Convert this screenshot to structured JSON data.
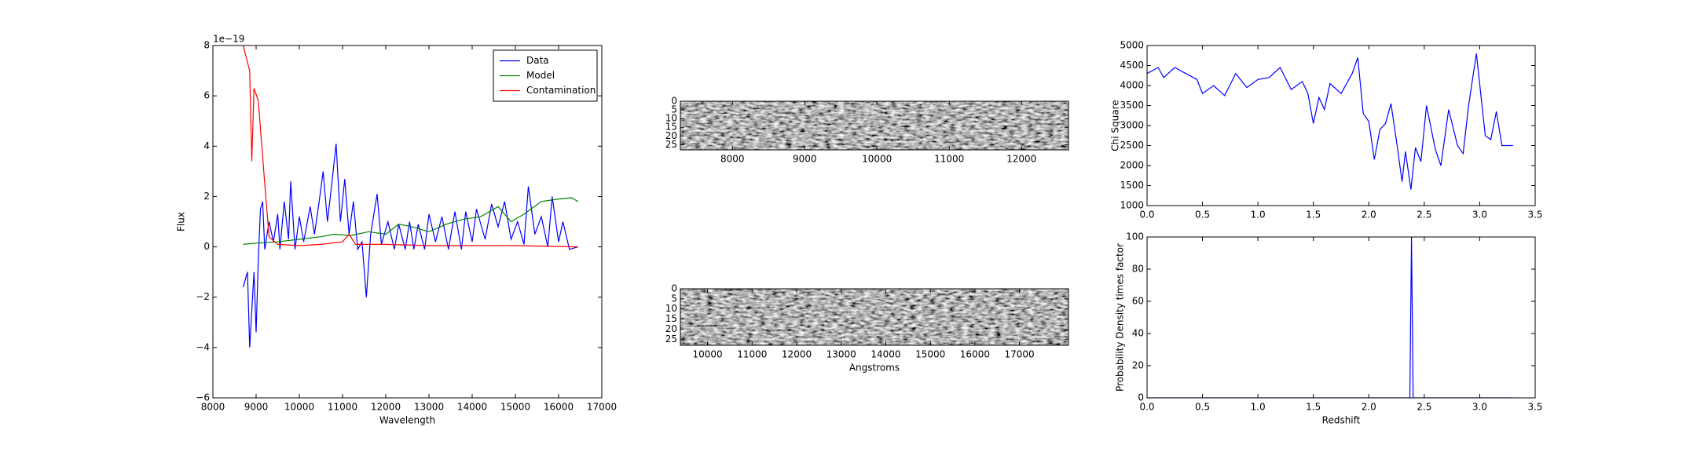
{
  "chart_data": [
    {
      "type": "line",
      "xlabel": "Wavelength",
      "ylabel": "Flux",
      "offset_text": "1e−19",
      "xlim": [
        8000,
        17000
      ],
      "ylim": [
        -6,
        8
      ],
      "xticks": [
        8000,
        9000,
        10000,
        11000,
        12000,
        13000,
        14000,
        15000,
        16000,
        17000
      ],
      "yticks": [
        {
          "value": -6,
          "label": "−6"
        },
        {
          "value": -4,
          "label": "−4"
        },
        {
          "value": -2,
          "label": "−2"
        },
        0,
        2,
        4,
        6,
        8
      ],
      "legend": "upper right",
      "series": [
        {
          "name": "Data",
          "color": "#0000ff",
          "x": [
            8700,
            8800,
            8850,
            8950,
            9000,
            9050,
            9100,
            9150,
            9200,
            9300,
            9400,
            9500,
            9550,
            9650,
            9750,
            9800,
            9900,
            10000,
            10100,
            10250,
            10350,
            10450,
            10550,
            10650,
            10750,
            10850,
            10950,
            11050,
            11150,
            11250,
            11350,
            11450,
            11550,
            11650,
            11800,
            11900,
            12050,
            12200,
            12300,
            12450,
            12550,
            12650,
            12750,
            12900,
            13000,
            13150,
            13300,
            13450,
            13600,
            13750,
            13850,
            14000,
            14100,
            14300,
            14450,
            14600,
            14750,
            14900,
            15050,
            15200,
            15300,
            15450,
            15600,
            15750,
            15850,
            16000,
            16100,
            16250,
            16450
          ],
          "values": [
            -1.6,
            -1.0,
            -4.0,
            -1.0,
            -3.4,
            -0.5,
            1.5,
            1.8,
            -0.1,
            1.0,
            0.2,
            1.3,
            -0.1,
            1.8,
            0.3,
            2.6,
            -0.1,
            1.2,
            0.2,
            1.6,
            0.5,
            1.7,
            3.0,
            1.0,
            2.5,
            4.1,
            1.0,
            2.7,
            0.5,
            1.8,
            -0.1,
            0.2,
            -2.0,
            0.5,
            2.1,
            0.1,
            1.0,
            -0.1,
            0.9,
            -0.1,
            1.0,
            -0.1,
            0.9,
            -0.1,
            1.3,
            0.2,
            1.2,
            -0.1,
            1.4,
            -0.1,
            1.4,
            0.2,
            1.5,
            0.3,
            1.7,
            0.8,
            1.8,
            0.3,
            1.0,
            0.1,
            2.4,
            0.5,
            1.2,
            0.0,
            2.0,
            0.2,
            1.0,
            -0.1,
            0.0
          ]
        },
        {
          "name": "Model",
          "color": "#008000",
          "x": [
            8700,
            9000,
            9500,
            10000,
            10500,
            10800,
            11200,
            11600,
            12000,
            12300,
            12600,
            13000,
            13400,
            13800,
            14200,
            14600,
            14900,
            15200,
            15600,
            16000,
            16300,
            16450
          ],
          "values": [
            0.1,
            0.15,
            0.2,
            0.3,
            0.4,
            0.5,
            0.45,
            0.6,
            0.5,
            0.9,
            0.8,
            0.6,
            0.9,
            1.1,
            1.2,
            1.6,
            1.0,
            1.3,
            1.8,
            1.9,
            1.95,
            1.8
          ]
        },
        {
          "name": "Contamination",
          "color": "#ff0000",
          "x": [
            8700,
            8850,
            8900,
            8950,
            9050,
            9200,
            9300,
            9500,
            10000,
            10500,
            11000,
            11150,
            11300,
            12000,
            13000,
            14000,
            15000,
            16450
          ],
          "values": [
            8.0,
            7.0,
            3.4,
            6.3,
            5.8,
            2.5,
            0.4,
            0.1,
            0.05,
            0.1,
            0.2,
            0.5,
            0.1,
            0.1,
            0.05,
            0.05,
            0.05,
            0.0
          ]
        }
      ]
    },
    {
      "type": "image",
      "xlim": [
        7280,
        12650
      ],
      "ylim": [
        28,
        0
      ],
      "xticks": [
        8000,
        9000,
        10000,
        11000,
        12000
      ],
      "yticks": [
        0,
        5,
        10,
        15,
        20,
        25
      ]
    },
    {
      "type": "image",
      "xlabel": "Angstroms",
      "xlim": [
        9390,
        18100
      ],
      "ylim": [
        28,
        0
      ],
      "xticks": [
        10000,
        11000,
        12000,
        13000,
        14000,
        15000,
        16000,
        17000
      ],
      "yticks": [
        0,
        5,
        10,
        15,
        20,
        25
      ]
    },
    {
      "type": "line",
      "ylabel": "Chi Square",
      "xlim": [
        0,
        3.5
      ],
      "ylim": [
        1000,
        5000
      ],
      "xticks": [
        {
          "value": 0,
          "label": "0.0"
        },
        0.5,
        {
          "value": 1,
          "label": "1.0"
        },
        1.5,
        {
          "value": 2,
          "label": "2.0"
        },
        2.5,
        {
          "value": 3,
          "label": "3.0"
        },
        3.5
      ],
      "yticks": [
        1000,
        1500,
        2000,
        2500,
        3000,
        3500,
        4000,
        4500,
        5000
      ],
      "series": [
        {
          "color": "#0000ff",
          "x": [
            0,
            0.1,
            0.15,
            0.25,
            0.35,
            0.45,
            0.5,
            0.6,
            0.7,
            0.8,
            0.9,
            1.0,
            1.1,
            1.2,
            1.3,
            1.4,
            1.45,
            1.5,
            1.55,
            1.6,
            1.65,
            1.75,
            1.85,
            1.9,
            1.95,
            2.0,
            2.05,
            2.1,
            2.15,
            2.2,
            2.25,
            2.3,
            2.33,
            2.38,
            2.42,
            2.47,
            2.52,
            2.6,
            2.65,
            2.72,
            2.8,
            2.85,
            2.9,
            2.97,
            3.05,
            3.1,
            3.15,
            3.2,
            3.3
          ],
          "values": [
            4300,
            4450,
            4200,
            4450,
            4300,
            4150,
            3800,
            4000,
            3750,
            4300,
            3950,
            4150,
            4200,
            4450,
            3900,
            4100,
            3800,
            3050,
            3700,
            3400,
            4050,
            3800,
            4300,
            4700,
            3300,
            3100,
            2150,
            2900,
            3050,
            3550,
            2600,
            1600,
            2350,
            1400,
            2450,
            2100,
            3500,
            2400,
            2000,
            3400,
            2500,
            2300,
            3500,
            4800,
            2750,
            2650,
            3350,
            2500,
            2500
          ]
        }
      ]
    },
    {
      "type": "line",
      "xlabel": "Redshift",
      "ylabel": "Probability Density times factor",
      "xlim": [
        0,
        3.5
      ],
      "ylim": [
        0,
        100
      ],
      "xticks": [
        {
          "value": 0,
          "label": "0.0"
        },
        0.5,
        {
          "value": 1,
          "label": "1.0"
        },
        1.5,
        {
          "value": 2,
          "label": "2.0"
        },
        2.5,
        {
          "value": 3,
          "label": "3.0"
        },
        3.5
      ],
      "yticks": [
        0,
        20,
        40,
        60,
        80,
        100
      ],
      "series": [
        {
          "color": "#0000ff",
          "x": [
            0,
            2.37,
            2.385,
            2.4,
            3.3
          ],
          "values": [
            0,
            0,
            100,
            0,
            0
          ]
        }
      ]
    }
  ]
}
